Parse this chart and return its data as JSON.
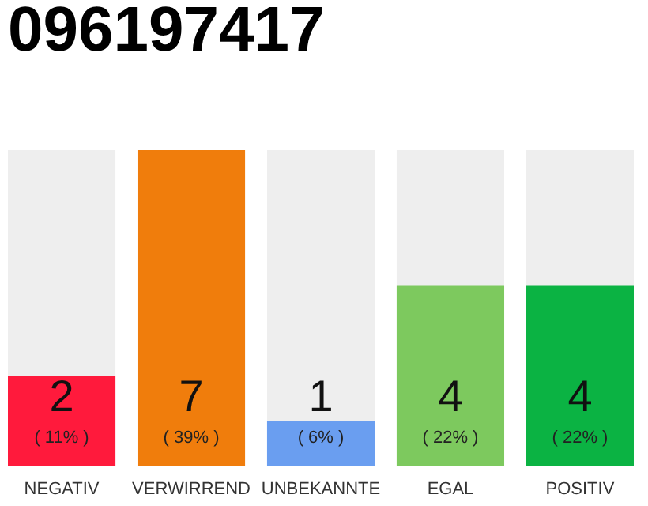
{
  "chart_data": {
    "type": "bar",
    "title": "096197417",
    "categories": [
      "NEGATIV",
      "VERWIRREND",
      "UNBEKANNTE",
      "EGAL",
      "POSITIV"
    ],
    "values": [
      2,
      7,
      1,
      4,
      4
    ],
    "colors": [
      "#ff1a3c",
      "#f07d0c",
      "#6a9ef0",
      "#7dc95e",
      "#0bb343"
    ],
    "data_labels": true,
    "annotations": [
      "( 11% )",
      "( 39% )",
      "( 6% )",
      "( 22% )",
      "( 22% )"
    ],
    "tick_labels": "x",
    "grid": false
  }
}
